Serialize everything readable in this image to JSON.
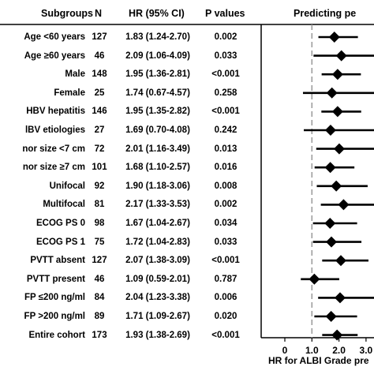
{
  "headers": {
    "subgroups": "Subgroups",
    "n": "N",
    "hr": "HR (95% CI)",
    "p": "P values",
    "plot": "Predicting pe"
  },
  "xaxis_label": "HR for ALBI Grade pre",
  "chart_data": {
    "type": "forest",
    "title": "",
    "xlabel": "HR for ALBI Grade pre",
    "xlim": [
      0,
      4
    ],
    "xticks": [
      "0",
      "1.0",
      "2.0",
      "3.0",
      "4"
    ],
    "reference_line": 1.0,
    "rows": [
      {
        "label": "Age <60 years",
        "n": "127",
        "hr_text": "1.83 (1.24-2.70)",
        "p": "0.002",
        "hr": 1.83,
        "lo": 1.24,
        "hi": 2.7
      },
      {
        "label": "Age ≥60 years",
        "n": "46",
        "hr_text": "2.09 (1.06-4.09)",
        "p": "0.033",
        "hr": 2.09,
        "lo": 1.06,
        "hi": 4.09
      },
      {
        "label": "Male",
        "n": "148",
        "hr_text": "1.95 (1.36-2.81)",
        "p": "<0.001",
        "hr": 1.95,
        "lo": 1.36,
        "hi": 2.81
      },
      {
        "label": "Female",
        "n": "25",
        "hr_text": "1.74 (0.67-4.57)",
        "p": "0.258",
        "hr": 1.74,
        "lo": 0.67,
        "hi": 4.57
      },
      {
        "label": "HBV hepatitis",
        "n": "146",
        "hr_text": "1.95 (1.35-2.82)",
        "p": "<0.001",
        "hr": 1.95,
        "lo": 1.35,
        "hi": 2.82
      },
      {
        "label": "lBV etiologies",
        "n": "27",
        "hr_text": "1.69 (0.70-4.08)",
        "p": "0.242",
        "hr": 1.69,
        "lo": 0.7,
        "hi": 4.08
      },
      {
        "label": "nor size <7 cm",
        "n": "72",
        "hr_text": "2.01 (1.16-3.49)",
        "p": "0.013",
        "hr": 2.01,
        "lo": 1.16,
        "hi": 3.49
      },
      {
        "label": "nor size ≥7 cm",
        "n": "101",
        "hr_text": "1.68 (1.10-2.57)",
        "p": "0.016",
        "hr": 1.68,
        "lo": 1.1,
        "hi": 2.57
      },
      {
        "label": "Unifocal",
        "n": "92",
        "hr_text": "1.90 (1.18-3.06)",
        "p": "0.008",
        "hr": 1.9,
        "lo": 1.18,
        "hi": 3.06
      },
      {
        "label": "Multifocal",
        "n": "81",
        "hr_text": "2.17 (1.33-3.53)",
        "p": "0.002",
        "hr": 2.17,
        "lo": 1.33,
        "hi": 3.53
      },
      {
        "label": "ECOG PS 0",
        "n": "98",
        "hr_text": "1.67 (1.04-2.67)",
        "p": "0.034",
        "hr": 1.67,
        "lo": 1.04,
        "hi": 2.67
      },
      {
        "label": "ECOG PS 1",
        "n": "75",
        "hr_text": "1.72 (1.04-2.83)",
        "p": "0.033",
        "hr": 1.72,
        "lo": 1.04,
        "hi": 2.83
      },
      {
        "label": "PVTT absent",
        "n": "127",
        "hr_text": "2.07 (1.38-3.09)",
        "p": "<0.001",
        "hr": 2.07,
        "lo": 1.38,
        "hi": 3.09
      },
      {
        "label": "PVTT present",
        "n": "46",
        "hr_text": "1.09 (0.59-2.01)",
        "p": "0.787",
        "hr": 1.09,
        "lo": 0.59,
        "hi": 2.01
      },
      {
        "label": "FP ≤200 ng/ml",
        "n": "84",
        "hr_text": "2.04 (1.23-3.38)",
        "p": "0.006",
        "hr": 2.04,
        "lo": 1.23,
        "hi": 3.38
      },
      {
        "label": "FP >200 ng/ml",
        "n": "89",
        "hr_text": "1.71 (1.09-2.67)",
        "p": "0.020",
        "hr": 1.71,
        "lo": 1.09,
        "hi": 2.67
      },
      {
        "label": "Entire cohort",
        "n": "173",
        "hr_text": "1.93 (1.38-2.69)",
        "p": "<0.001",
        "hr": 1.93,
        "lo": 1.38,
        "hi": 2.69
      }
    ]
  }
}
